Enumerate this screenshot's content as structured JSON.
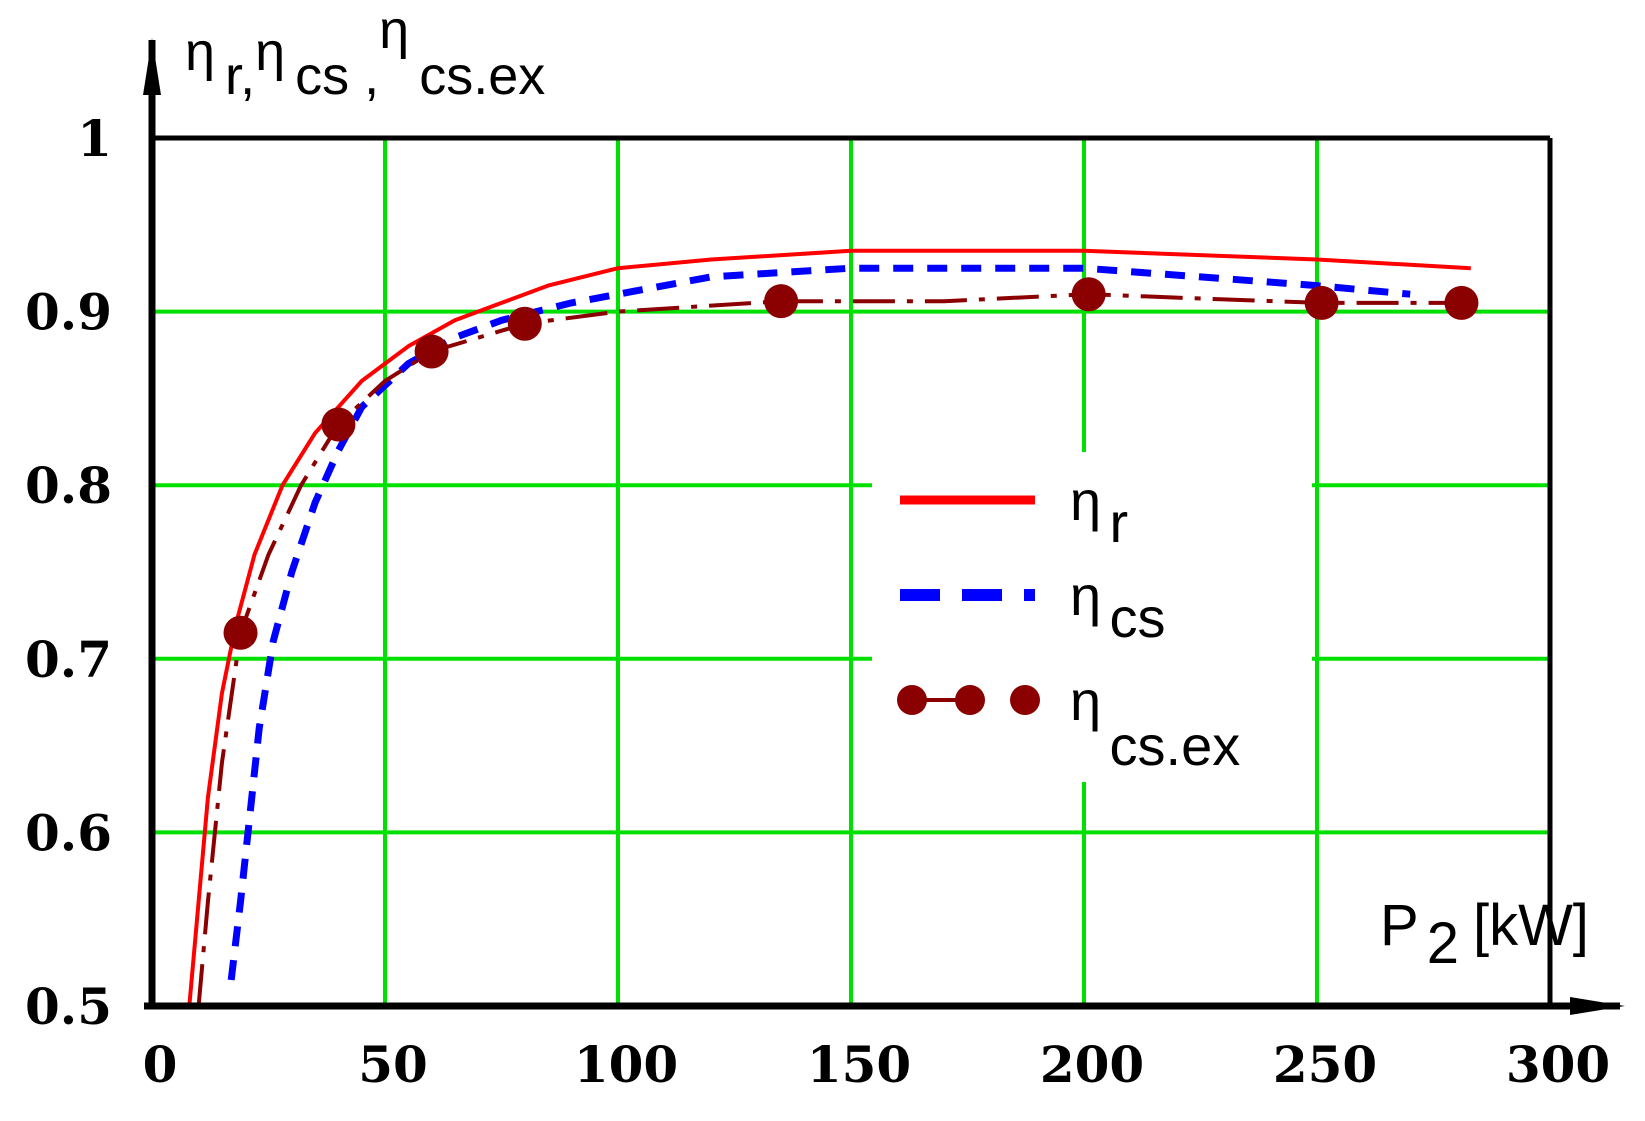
{
  "chart_data": {
    "type": "line",
    "title": "",
    "ylabel": {
      "parts": [
        {
          "sym": "η",
          "sub": "r"
        },
        {
          "sym": "η",
          "sub": "cs"
        },
        {
          "sym": "η",
          "sub": "cs.ex"
        }
      ],
      "separator": ","
    },
    "xlabel": {
      "main": "P",
      "sub": "2",
      "unit": "[kW]"
    },
    "xlim": [
      0,
      300
    ],
    "ylim": [
      0.5,
      1
    ],
    "xticks": [
      "0",
      "50",
      "100",
      "150",
      "200",
      "250",
      "300"
    ],
    "yticks": [
      "0.5",
      "0.6",
      "0.7",
      "0.8",
      "0.9",
      "1"
    ],
    "grid": true,
    "legend_position": "center-right",
    "series": [
      {
        "name_sym": "η",
        "name_sub": "r",
        "color": "#ff0000",
        "style": "solid",
        "x": [
          8,
          10,
          12,
          15,
          18,
          22,
          28,
          35,
          45,
          55,
          65,
          75,
          85,
          100,
          120,
          150,
          200,
          250,
          283
        ],
        "y": [
          0.5,
          0.56,
          0.62,
          0.68,
          0.72,
          0.76,
          0.8,
          0.83,
          0.86,
          0.88,
          0.895,
          0.905,
          0.915,
          0.925,
          0.93,
          0.935,
          0.935,
          0.93,
          0.925
        ]
      },
      {
        "name_sym": "η",
        "name_sub": "cs",
        "color": "#0000ff",
        "style": "dashed",
        "x": [
          17,
          19,
          21,
          23,
          26,
          30,
          35,
          40,
          45,
          55,
          65,
          75,
          90,
          100,
          120,
          150,
          200,
          250,
          270
        ],
        "y": [
          0.515,
          0.56,
          0.61,
          0.66,
          0.71,
          0.75,
          0.79,
          0.82,
          0.845,
          0.87,
          0.885,
          0.895,
          0.905,
          0.91,
          0.92,
          0.925,
          0.925,
          0.915,
          0.91
        ]
      },
      {
        "name_sym": "η",
        "name_sub": "cs.ex",
        "color": "#8b0000",
        "style": "dash-marker",
        "x": [
          10,
          12,
          15,
          19,
          25,
          32,
          40,
          50,
          60,
          80,
          100,
          135,
          170,
          201,
          230,
          251,
          270,
          281
        ],
        "y": [
          0.5,
          0.56,
          0.64,
          0.715,
          0.76,
          0.8,
          0.835,
          0.86,
          0.877,
          0.893,
          0.9,
          0.906,
          0.906,
          0.91,
          0.907,
          0.905,
          0.905,
          0.905
        ],
        "markers_x": [
          19,
          40,
          60,
          80,
          135,
          201,
          251,
          281
        ],
        "markers_y": [
          0.715,
          0.835,
          0.877,
          0.893,
          0.906,
          0.91,
          0.905,
          0.905
        ]
      }
    ]
  }
}
